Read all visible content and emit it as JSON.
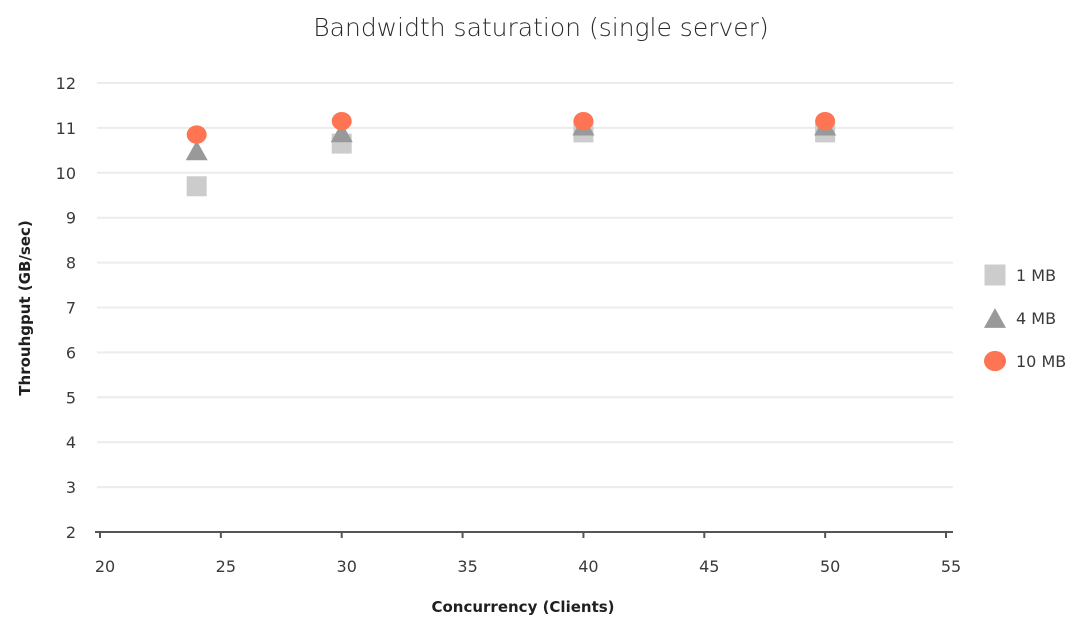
{
  "chart_data": {
    "type": "scatter",
    "title": "Bandwidth saturation (single server)",
    "xlabel": "Concurrency (Clients)",
    "ylabel": "Throuhgput (GB/sec)",
    "xlim": [
      20,
      55
    ],
    "ylim": [
      2,
      12
    ],
    "x_ticks": [
      20,
      25,
      30,
      35,
      40,
      45,
      50,
      55
    ],
    "y_ticks": [
      2,
      3,
      4,
      5,
      6,
      7,
      8,
      9,
      10,
      11,
      12
    ],
    "grid": "horizontal",
    "legend_position": "right",
    "series": [
      {
        "name": "1 MB",
        "marker": "square",
        "color": "#cccccc",
        "points": [
          {
            "x": 24,
            "y": 9.7
          },
          {
            "x": 30,
            "y": 10.65
          },
          {
            "x": 40,
            "y": 10.9
          },
          {
            "x": 50,
            "y": 10.9
          }
        ]
      },
      {
        "name": "4 MB",
        "marker": "triangle",
        "color": "#999999",
        "points": [
          {
            "x": 24,
            "y": 10.5
          },
          {
            "x": 30,
            "y": 10.9
          },
          {
            "x": 40,
            "y": 11.05
          },
          {
            "x": 50,
            "y": 11.05
          }
        ]
      },
      {
        "name": "10 MB",
        "marker": "circle",
        "color": "#ff7452",
        "points": [
          {
            "x": 24,
            "y": 10.85
          },
          {
            "x": 30,
            "y": 11.15
          },
          {
            "x": 40,
            "y": 11.15
          },
          {
            "x": 50,
            "y": 11.15
          }
        ]
      }
    ]
  }
}
